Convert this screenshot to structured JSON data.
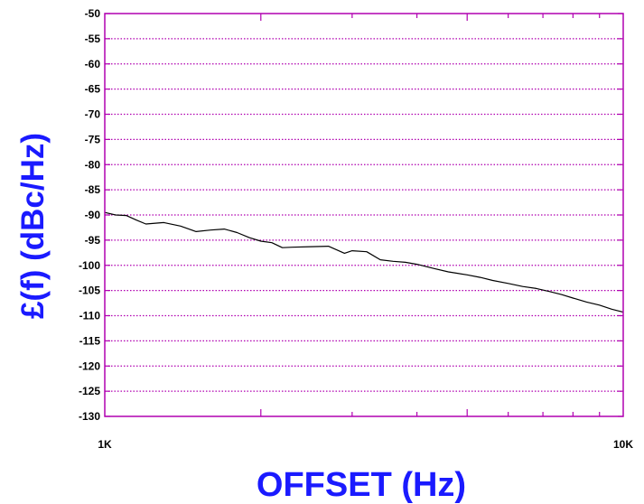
{
  "chart_data": {
    "type": "line",
    "title": "",
    "xlabel": "OFFSET (Hz)",
    "ylabel": "£(f) (dBc/Hz)",
    "x_scale": "log",
    "xlim": [
      1000,
      10000
    ],
    "ylim": [
      -130,
      -50
    ],
    "x_tick_labels": [
      "1K",
      "10K"
    ],
    "y_ticks": [
      -50,
      -55,
      -60,
      -65,
      -70,
      -75,
      -80,
      -85,
      -90,
      -95,
      -100,
      -105,
      -110,
      -115,
      -120,
      -125,
      -130
    ],
    "grid": true,
    "colors": {
      "frame": "#b000b0",
      "grid": "#b000b0",
      "line": "#000000",
      "axis_title": "#1a1aff"
    },
    "series": [
      {
        "x": [
          1000,
          1050,
          1100,
          1150,
          1200,
          1300,
          1400,
          1500,
          1600,
          1700,
          1800,
          1900,
          2000,
          2100,
          2200,
          2300,
          2500,
          2700,
          2900,
          3000,
          3200,
          3400,
          3600,
          3800,
          4000,
          4300,
          4600,
          5000,
          5300,
          5600,
          6000,
          6400,
          6800,
          7200,
          7600,
          8000,
          8500,
          9000,
          9500,
          10000
        ],
        "y": [
          -89.5,
          -90.0,
          -90.1,
          -91.0,
          -91.8,
          -91.5,
          -92.2,
          -93.3,
          -93.0,
          -92.8,
          -93.5,
          -94.5,
          -95.2,
          -95.5,
          -96.5,
          -96.4,
          -96.3,
          -96.2,
          -97.6,
          -97.1,
          -97.3,
          -98.9,
          -99.2,
          -99.4,
          -99.8,
          -100.6,
          -101.3,
          -101.9,
          -102.4,
          -103.0,
          -103.6,
          -104.2,
          -104.6,
          -105.2,
          -105.8,
          -106.5,
          -107.3,
          -107.9,
          -108.7,
          -109.3
        ]
      }
    ]
  }
}
